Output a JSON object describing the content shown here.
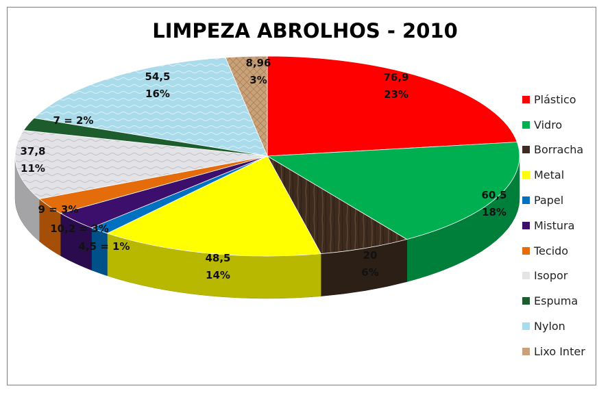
{
  "chart_data": {
    "type": "pie",
    "title": "LIMPEZA ABROLHOS - 2010",
    "series": [
      {
        "name": "Plástico",
        "value": 76.9,
        "color": "#ff0000",
        "label1": "76,9",
        "label2": "23%"
      },
      {
        "name": "Vidro",
        "value": 60.5,
        "color": "#00b050",
        "label1": "60,5",
        "label2": "18%"
      },
      {
        "name": "Borracha",
        "value": 20,
        "color": "#3d2b1f",
        "label1": "20",
        "label2": "6%"
      },
      {
        "name": "Metal",
        "value": 48.5,
        "color": "#ffff00",
        "label1": "48,5",
        "label2": "14%"
      },
      {
        "name": "Papel",
        "value": 4.5,
        "color": "#0070c0",
        "label1": "4,5 = 1%",
        "label2": ""
      },
      {
        "name": "Mistura",
        "value": 10.2,
        "color": "#3b0f6b",
        "label1": "10,2 = 3%",
        "label2": ""
      },
      {
        "name": "Tecido",
        "value": 9,
        "color": "#e46c0a",
        "label1": "9 = 3%",
        "label2": ""
      },
      {
        "name": "Isopor",
        "value": 37.8,
        "color": "#e4e4e8",
        "label1": "37,8",
        "label2": "11%"
      },
      {
        "name": "Espuma",
        "value": 7,
        "color": "#1d5c2c",
        "label1": "7 = 2%",
        "label2": ""
      },
      {
        "name": "Nylon",
        "value": 54.5,
        "color": "#a8dcec",
        "label1": "54,5",
        "label2": "16%"
      },
      {
        "name": "Lixo Inter",
        "value": 8.96,
        "color": "#c8a27a",
        "label1": "8,96",
        "label2": "3%"
      }
    ],
    "legend_position": "right"
  }
}
